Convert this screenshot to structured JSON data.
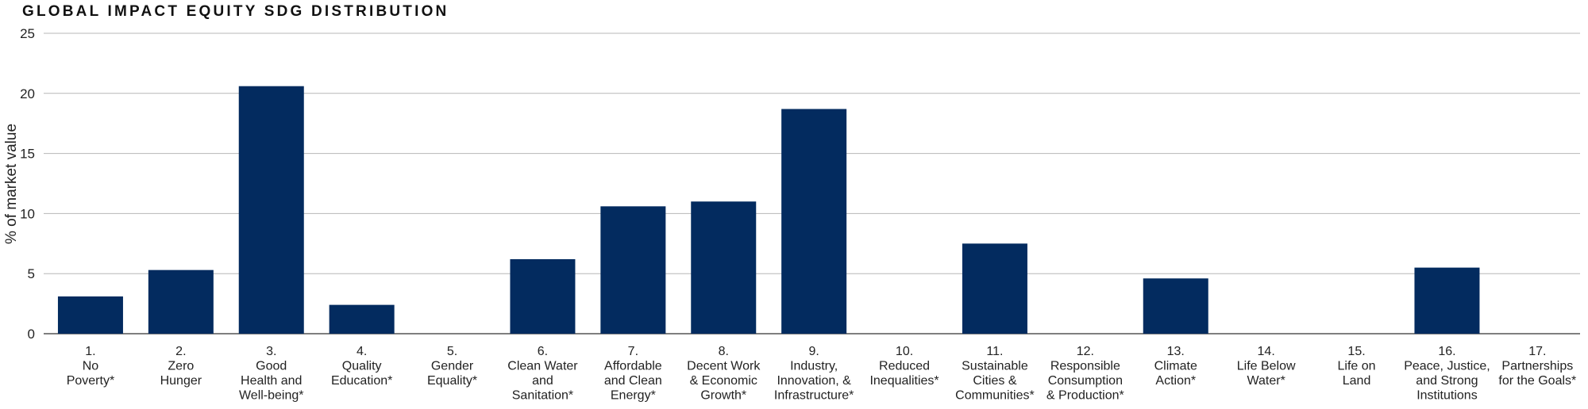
{
  "chart_data": {
    "type": "bar",
    "title": "GLOBAL IMPACT EQUITY SDG DISTRIBUTION",
    "ylabel": "% of market value",
    "xlabel": "",
    "ylim": [
      0,
      25
    ],
    "yticks": [
      0,
      5,
      10,
      15,
      20,
      25
    ],
    "grid": true,
    "colors": {
      "bar": "#032b5f",
      "grid": "#b7b7b7",
      "axis": "#555555"
    },
    "categories": [
      [
        "1.",
        "No",
        "Poverty*"
      ],
      [
        "2.",
        "Zero",
        "Hunger"
      ],
      [
        "3.",
        "Good",
        "Health and",
        "Well-being*"
      ],
      [
        "4.",
        "Quality",
        "Education*"
      ],
      [
        "5.",
        "Gender",
        "Equality*"
      ],
      [
        "6.",
        "Clean Water",
        "and",
        "Sanitation*"
      ],
      [
        "7.",
        "Affordable",
        "and Clean",
        "Energy*"
      ],
      [
        "8.",
        "Decent Work",
        "& Economic",
        "Growth*"
      ],
      [
        "9.",
        "Industry,",
        "Innovation, &",
        "Infrastructure*"
      ],
      [
        "10.",
        "Reduced",
        "Inequalities*"
      ],
      [
        "11.",
        "Sustainable",
        "Cities &",
        "Communities*"
      ],
      [
        "12.",
        "Responsible",
        "Consumption",
        "& Production*"
      ],
      [
        "13.",
        "Climate",
        "Action*"
      ],
      [
        "14.",
        "Life Below",
        "Water*"
      ],
      [
        "15.",
        "Life on",
        "Land"
      ],
      [
        "16.",
        "Peace, Justice,",
        "and Strong",
        "Institutions"
      ],
      [
        "17.",
        "Partnerships",
        "for the Goals*"
      ]
    ],
    "values": [
      3.1,
      5.3,
      20.6,
      2.4,
      0,
      6.2,
      10.6,
      11.0,
      18.7,
      0,
      7.5,
      0,
      4.6,
      0,
      0,
      5.5,
      0
    ]
  }
}
